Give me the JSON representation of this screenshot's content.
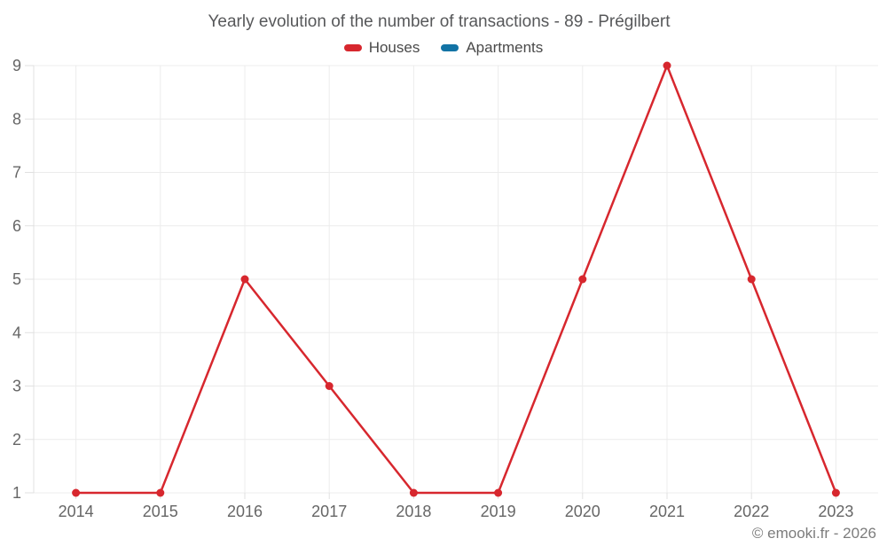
{
  "footer": {
    "text": "© emooki.fr - 2026"
  },
  "chart_data": {
    "type": "line",
    "title": "Yearly evolution of the number of transactions - 89 - Prégilbert",
    "categories": [
      "2014",
      "2015",
      "2016",
      "2017",
      "2018",
      "2019",
      "2020",
      "2021",
      "2022",
      "2023"
    ],
    "series": [
      {
        "name": "Houses",
        "color": "#d7272e",
        "values": [
          1,
          1,
          5,
          3,
          1,
          1,
          5,
          9,
          5,
          1
        ]
      },
      {
        "name": "Apartments",
        "color": "#1273a5",
        "values": []
      }
    ],
    "xlabel": "",
    "ylabel": "",
    "ylim": [
      1,
      9
    ],
    "yticks": [
      1,
      2,
      3,
      4,
      5,
      6,
      7,
      8,
      9
    ],
    "grid": true,
    "legend_position": "top",
    "colors": {
      "grid": "#ececec",
      "axis_tick": "#e0e0e0",
      "axis_label": "#666666"
    }
  }
}
